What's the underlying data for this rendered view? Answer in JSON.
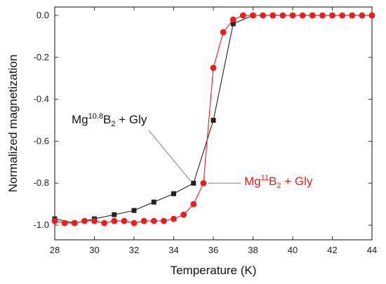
{
  "chart_data": {
    "type": "line",
    "xlabel": "Temperature (K)",
    "ylabel": "Normalized magnetization",
    "xlim": [
      28,
      44
    ],
    "ylim": [
      -1.07,
      0.04
    ],
    "xticks": [
      28,
      30,
      32,
      34,
      36,
      38,
      40,
      42,
      44
    ],
    "xtick_labels": [
      "28",
      "30",
      "32",
      "34",
      "36",
      "38",
      "40",
      "42",
      "44"
    ],
    "yticks": [
      0.0,
      -0.2,
      -0.4,
      -0.6,
      -0.8,
      -1.0
    ],
    "ytick_labels": [
      "0.0",
      "-0.2",
      "-0.4",
      "-0.6",
      "-0.8",
      "-1.0"
    ],
    "grid": false,
    "legend": false,
    "series": [
      {
        "color": "#222222",
        "marker": "square",
        "x": [
          28,
          29,
          30,
          31,
          32,
          33,
          34,
          35,
          36,
          37,
          38,
          39,
          40,
          41,
          42,
          43,
          44
        ],
        "values": [
          -0.97,
          -0.99,
          -0.97,
          -0.95,
          -0.93,
          -0.89,
          -0.85,
          -0.8,
          -0.5,
          -0.04,
          0.0,
          0.0,
          0.0,
          0.0,
          0.0,
          0.0,
          0.0
        ]
      },
      {
        "color": "#ee1c1c",
        "marker": "circle",
        "x": [
          28,
          28.5,
          29,
          29.5,
          30,
          30.5,
          31,
          31.5,
          32,
          32.5,
          33,
          33.5,
          34,
          34.5,
          35,
          35.5,
          36,
          36.5,
          37,
          37.5,
          38,
          38.5,
          39,
          39.5,
          40,
          40.5,
          41,
          41.5,
          42,
          42.5,
          43,
          43.5,
          44
        ],
        "values": [
          -0.98,
          -0.99,
          -0.99,
          -0.98,
          -0.98,
          -0.99,
          -0.98,
          -0.98,
          -0.99,
          -0.98,
          -0.98,
          -0.98,
          -0.97,
          -0.95,
          -0.9,
          -0.8,
          -0.25,
          -0.08,
          -0.02,
          0.0,
          0.0,
          0.0,
          0.0,
          0.0,
          0.0,
          0.0,
          0.0,
          0.0,
          0.0,
          0.0,
          0.0,
          0.0,
          0.0
        ]
      }
    ],
    "annotations": [
      {
        "color": "#111111",
        "base": "Mg",
        "sup": "10.8",
        "element": "B",
        "sub": "2",
        "suffix": " + Gly",
        "points_to": [
          35,
          -0.8
        ]
      },
      {
        "color": "#ee1c1c",
        "base": "Mg",
        "sup": "11",
        "element": "B",
        "sub": "2",
        "suffix": " + Gly",
        "points_to": [
          35.5,
          -0.8
        ]
      }
    ]
  }
}
